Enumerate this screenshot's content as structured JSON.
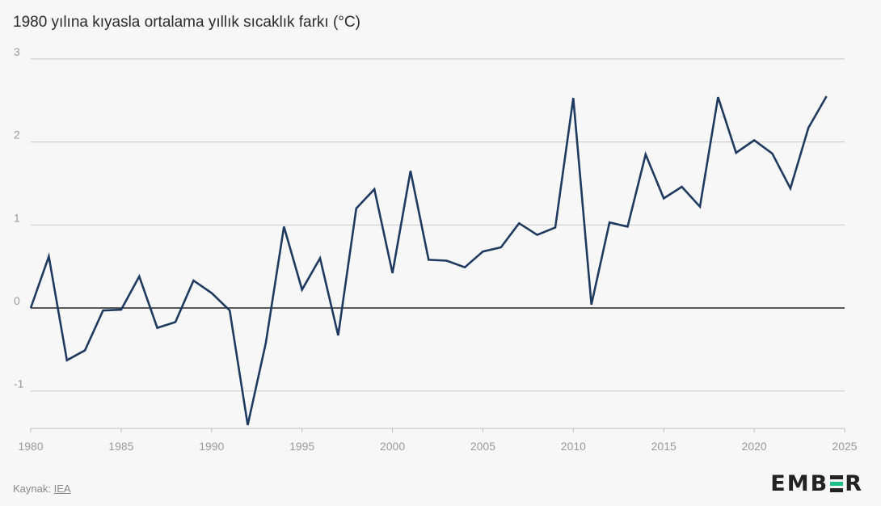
{
  "subtitle": "1980 yılına kıyasla ortalama yıllık sıcaklık farkı (°C)",
  "footer": {
    "source_label": "Kaynak:",
    "source_link": "IEA"
  },
  "logo": {
    "text_left": "EMB",
    "text_right": "R"
  },
  "colors": {
    "line": "#1f3a60",
    "grid": "#cfcfcf",
    "zero": "#222222",
    "tick": "#9a9a9a"
  },
  "chart_data": {
    "type": "line",
    "title": "",
    "subtitle": "1980 yılına kıyasla ortalama yıllık sıcaklık farkı (°C)",
    "xlabel": "",
    "ylabel": "",
    "xlim": [
      1980,
      2025
    ],
    "ylim": [
      -1.4,
      3
    ],
    "x_ticks": [
      1980,
      1985,
      1990,
      1995,
      2000,
      2005,
      2010,
      2015,
      2020,
      2025
    ],
    "y_ticks": [
      -1,
      0,
      1,
      2,
      3
    ],
    "grid": true,
    "legend": "none",
    "series": [
      {
        "x": [
          1980,
          1981,
          1982,
          1983,
          1984,
          1985,
          1986,
          1987,
          1988,
          1989,
          1990,
          1991,
          1992,
          1993,
          1994,
          1995,
          1996,
          1997,
          1998,
          1999,
          2000,
          2001,
          2002,
          2003,
          2004,
          2005,
          2006,
          2007,
          2008,
          2009,
          2010,
          2011,
          2012,
          2013,
          2014,
          2015,
          2016,
          2017,
          2018,
          2019,
          2020,
          2021,
          2022,
          2023,
          2024
        ],
        "values": [
          0.0,
          0.62,
          -0.63,
          -0.51,
          -0.03,
          -0.02,
          0.38,
          -0.24,
          -0.17,
          0.33,
          0.18,
          -0.03,
          -1.41,
          -0.42,
          0.98,
          0.22,
          0.6,
          -0.33,
          1.2,
          1.43,
          0.42,
          1.65,
          0.58,
          0.57,
          0.49,
          0.68,
          0.73,
          1.02,
          0.88,
          0.97,
          2.53,
          0.04,
          1.03,
          0.98,
          1.85,
          1.32,
          1.46,
          1.22,
          2.54,
          1.87,
          2.02,
          1.86,
          1.44,
          2.17,
          2.55
        ]
      }
    ]
  }
}
